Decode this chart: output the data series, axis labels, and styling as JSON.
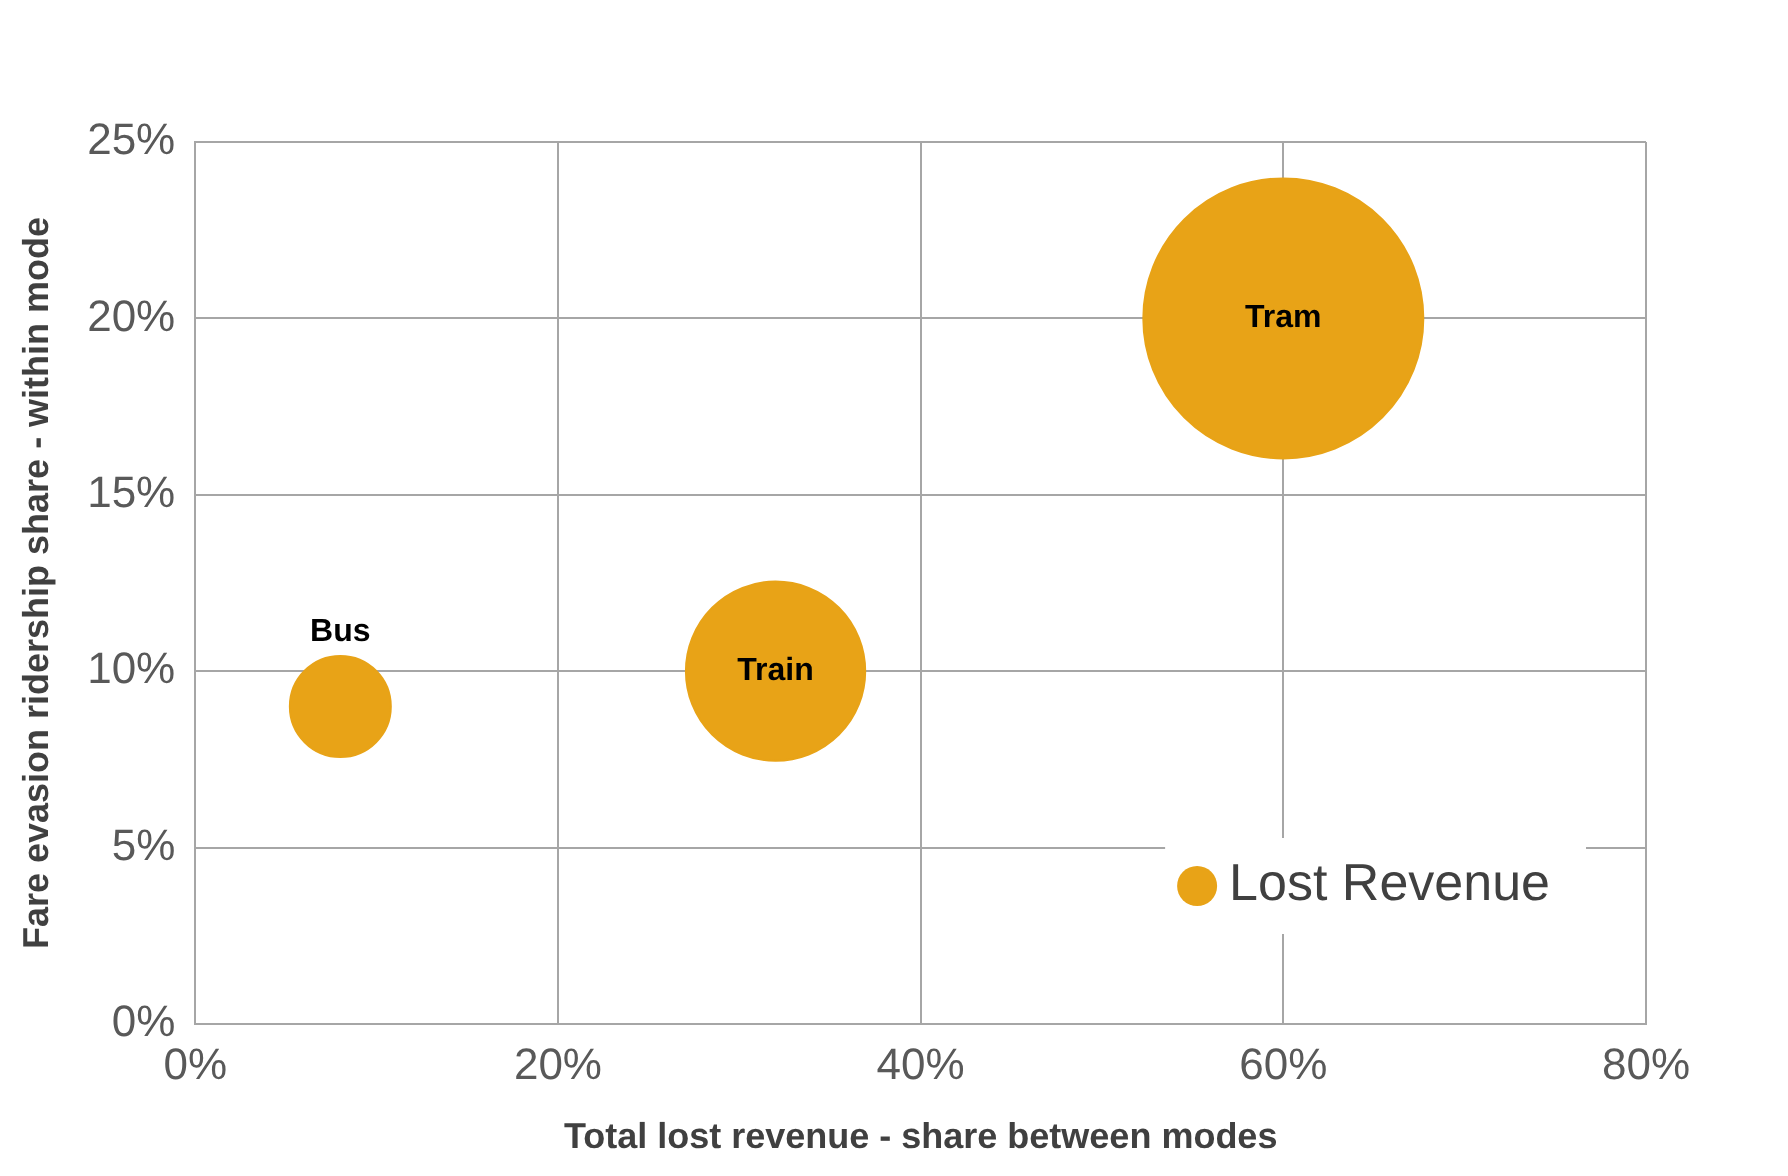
{
  "chart_data": {
    "type": "bubble",
    "xlabel": "Total lost revenue - share between modes",
    "ylabel": "Fare evasion ridership share - within mode",
    "series": [
      {
        "name": "Lost Revenue",
        "color": "#e8a317",
        "x": [
          8,
          32,
          60
        ],
        "values": [
          9,
          10,
          20
        ],
        "sizes": [
          0.13,
          0.41,
          1
        ]
      }
    ],
    "annotations": [
      {
        "text": "Bus",
        "x": 8,
        "y": 9
      },
      {
        "text": "Train",
        "x": 32,
        "y": 10
      },
      {
        "text": "Tram",
        "x": 60,
        "y": 20
      }
    ],
    "xlim": [
      0,
      80
    ],
    "xticks": [
      {
        "value": 0,
        "label": "0%"
      },
      {
        "value": 20,
        "label": "20%"
      },
      {
        "value": 40,
        "label": "40%"
      },
      {
        "value": 60,
        "label": "60%"
      },
      {
        "value": 80,
        "label": "80%"
      }
    ],
    "ylim": [
      0,
      25
    ],
    "yticks": [
      {
        "value": 0,
        "label": "0%"
      },
      {
        "value": 5,
        "label": "5%"
      },
      {
        "value": 10,
        "label": "10%"
      },
      {
        "value": 15,
        "label": "15%"
      },
      {
        "value": 20,
        "label": "20%"
      },
      {
        "value": 25,
        "label": "25%"
      }
    ],
    "grid": true,
    "legend": "bottom right"
  }
}
